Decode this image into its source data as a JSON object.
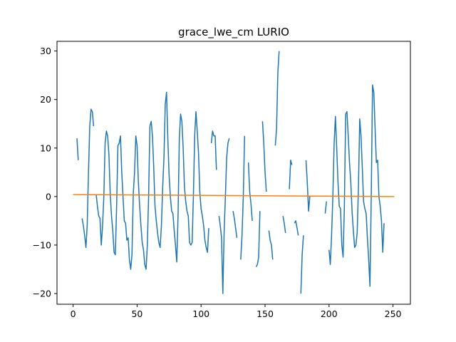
{
  "chart_data": {
    "type": "line",
    "title": "grace_lwe_cm LURIO",
    "xlabel": "",
    "ylabel": "",
    "xlim": [
      -12.6,
      263.6
    ],
    "ylim": [
      -22.2,
      32.0
    ],
    "xticks": [
      0,
      50,
      100,
      150,
      200,
      250
    ],
    "yticks": [
      -20,
      -10,
      0,
      10,
      20,
      30
    ],
    "grid": false,
    "series": [
      {
        "color": "#1f77b4",
        "points": [
          [
            3,
            12.0
          ],
          [
            4,
            7.5
          ],
          [
            null,
            null
          ],
          [
            7,
            -4.5
          ],
          [
            8,
            -6.0
          ],
          [
            9,
            -8.0
          ],
          [
            10,
            -10.5
          ],
          [
            11,
            -6.0
          ],
          [
            12,
            5.0
          ],
          [
            13,
            14.5
          ],
          [
            14,
            18.0
          ],
          [
            15,
            17.5
          ],
          [
            16,
            14.5
          ],
          [
            null,
            null
          ],
          [
            18,
            0.5
          ],
          [
            19,
            -2.0
          ],
          [
            20,
            -4.0
          ],
          [
            21,
            -4.5
          ],
          [
            22,
            -10.0
          ],
          [
            23,
            -6.0
          ],
          [
            24,
            0.0
          ],
          [
            25,
            11.0
          ],
          [
            26,
            13.5
          ],
          [
            27,
            12.5
          ],
          [
            28,
            8.5
          ],
          [
            29,
            0.5
          ],
          [
            30,
            -4.0
          ],
          [
            31,
            -7.0
          ],
          [
            32,
            -11.5
          ],
          [
            33,
            -12.0
          ],
          [
            34,
            -2.0
          ],
          [
            35,
            10.5
          ],
          [
            36,
            11.0
          ],
          [
            37,
            12.5
          ],
          [
            38,
            5.0
          ],
          [
            39,
            0.0
          ],
          [
            40,
            -5.0
          ],
          [
            41,
            -5.5
          ],
          [
            42,
            -9.0
          ],
          [
            43,
            -8.5
          ],
          [
            44,
            -13.0
          ],
          [
            45,
            -15.0
          ],
          [
            46,
            -12.0
          ],
          [
            47,
            0.5
          ],
          [
            48,
            5.0
          ],
          [
            49,
            12.5
          ],
          [
            50,
            10.5
          ],
          [
            51,
            3.0
          ],
          [
            52,
            -2.0
          ],
          [
            53,
            -6.0
          ],
          [
            54,
            -9.5
          ],
          [
            55,
            -11.0
          ],
          [
            56,
            -14.0
          ],
          [
            57,
            -15.0
          ],
          [
            58,
            -10.0
          ],
          [
            59,
            0.0
          ],
          [
            60,
            14.5
          ],
          [
            61,
            15.5
          ],
          [
            62,
            12.5
          ],
          [
            63,
            6.0
          ],
          [
            64,
            -2.0
          ],
          [
            65,
            -5.0
          ],
          [
            66,
            -7.5
          ],
          [
            67,
            -9.5
          ],
          [
            68,
            -10.5
          ],
          [
            69,
            -6.0
          ],
          [
            70,
            2.0
          ],
          [
            71,
            8.0
          ],
          [
            72,
            19.0
          ],
          [
            73,
            21.5
          ],
          [
            74,
            12.0
          ],
          [
            75,
            4.5
          ],
          [
            76,
            0.0
          ],
          [
            77,
            -3.0
          ],
          [
            78,
            -3.5
          ],
          [
            79,
            -7.0
          ],
          [
            80,
            -10.0
          ],
          [
            81,
            -13.5
          ],
          [
            82,
            -4.0
          ],
          [
            83,
            12.0
          ],
          [
            84,
            17.0
          ],
          [
            85,
            15.5
          ],
          [
            86,
            10.0
          ],
          [
            87,
            2.0
          ],
          [
            88,
            -1.0
          ],
          [
            89,
            -3.0
          ],
          [
            90,
            -4.0
          ],
          [
            91,
            -9.5
          ],
          [
            92,
            -10.0
          ],
          [
            93,
            -9.5
          ],
          [
            94,
            0.0
          ],
          [
            95,
            12.5
          ],
          [
            96,
            17.5
          ],
          [
            97,
            13.5
          ],
          [
            98,
            9.0
          ],
          [
            99,
            1.0
          ],
          [
            100,
            -2.5
          ],
          [
            101,
            -4.0
          ],
          [
            102,
            -6.0
          ],
          [
            103,
            -9.0
          ],
          [
            104,
            -10.5
          ],
          [
            105,
            -11.5
          ],
          [
            106,
            -6.5
          ],
          [
            null,
            null
          ],
          [
            108,
            11.0
          ],
          [
            109,
            13.5
          ],
          [
            110,
            12.5
          ],
          [
            111,
            12.5
          ],
          [
            112,
            5.5
          ],
          [
            null,
            null
          ],
          [
            114,
            -4.0
          ],
          [
            115,
            -6.0
          ],
          [
            116,
            -8.5
          ],
          [
            117,
            -20.0
          ],
          [
            118,
            -7.5
          ],
          [
            119,
            0.0
          ],
          [
            120,
            8.0
          ],
          [
            121,
            11.0
          ],
          [
            122,
            12.0
          ],
          [
            null,
            null
          ],
          [
            125,
            -3.0
          ],
          [
            126,
            -4.5
          ],
          [
            127,
            -6.5
          ],
          [
            128,
            -8.5
          ],
          [
            null,
            null
          ],
          [
            131,
            -13.0
          ],
          [
            132,
            -8.0
          ],
          [
            133,
            0.0
          ],
          [
            134,
            12.5
          ],
          [
            null,
            null
          ],
          [
            137,
            7.0
          ],
          [
            138,
            1.0
          ],
          [
            139,
            -1.5
          ],
          [
            140,
            -5.0
          ],
          [
            null,
            null
          ],
          [
            143,
            -14.5
          ],
          [
            144,
            -14.0
          ],
          [
            145,
            -12.5
          ],
          [
            146,
            -3.0
          ],
          [
            null,
            null
          ],
          [
            148,
            15.5
          ],
          [
            149,
            11.0
          ],
          [
            150,
            5.0
          ],
          [
            151,
            1.0
          ],
          [
            null,
            null
          ],
          [
            153,
            -7.0
          ],
          [
            154,
            -9.0
          ],
          [
            155,
            -10.0
          ],
          [
            156,
            -13.0
          ],
          [
            null,
            null
          ],
          [
            158,
            10.5
          ],
          [
            159,
            14.0
          ],
          [
            160,
            25.5
          ],
          [
            161,
            30.0
          ],
          [
            null,
            null
          ],
          [
            164,
            -4.0
          ],
          [
            165,
            -5.5
          ],
          [
            166,
            -7.5
          ],
          [
            null,
            null
          ],
          [
            169,
            1.5
          ],
          [
            170,
            7.5
          ],
          [
            171,
            6.5
          ],
          [
            null,
            null
          ],
          [
            173,
            -5.5
          ],
          [
            174,
            -5.0
          ],
          [
            175,
            -6.5
          ],
          [
            176,
            -8.0
          ],
          [
            null,
            null
          ],
          [
            178,
            -20.0
          ],
          [
            179,
            -12.0
          ],
          [
            180,
            -8.0
          ],
          [
            null,
            null
          ],
          [
            182,
            7.5
          ],
          [
            183,
            3.0
          ],
          [
            184,
            -3.0
          ],
          [
            185,
            0.0
          ],
          [
            null,
            null
          ],
          [
            197,
            -3.5
          ],
          [
            198,
            -1.0
          ],
          [
            null,
            null
          ],
          [
            200,
            -11.0
          ],
          [
            201,
            -14.0
          ],
          [
            202,
            -8.0
          ],
          [
            203,
            0.0
          ],
          [
            204,
            11.0
          ],
          [
            205,
            16.5
          ],
          [
            206,
            10.0
          ],
          [
            207,
            3.0
          ],
          [
            208,
            -2.0
          ],
          [
            209,
            -2.5
          ],
          [
            210,
            -10.0
          ],
          [
            211,
            -12.5
          ],
          [
            212,
            -2.0
          ],
          [
            213,
            17.0
          ],
          [
            214,
            17.5
          ],
          [
            215,
            12.5
          ],
          [
            216,
            7.0
          ],
          [
            217,
            3.0
          ],
          [
            218,
            -3.0
          ],
          [
            219,
            -7.0
          ],
          [
            220,
            -10.5
          ],
          [
            221,
            -10.0
          ],
          [
            222,
            -7.5
          ],
          [
            223,
            2.0
          ],
          [
            224,
            16.0
          ],
          [
            225,
            12.5
          ],
          [
            226,
            6.0
          ],
          [
            227,
            -1.0
          ],
          [
            228,
            -2.5
          ],
          [
            229,
            -3.5
          ],
          [
            230,
            -8.5
          ],
          [
            231,
            -13.0
          ],
          [
            232,
            -18.5
          ],
          [
            233,
            0.0
          ],
          [
            234,
            23.0
          ],
          [
            235,
            21.5
          ],
          [
            236,
            14.0
          ],
          [
            237,
            7.0
          ],
          [
            238,
            7.5
          ],
          [
            239,
            0.0
          ],
          [
            240,
            -2.0
          ],
          [
            241,
            -5.0
          ],
          [
            242,
            -11.5
          ],
          [
            243,
            -5.5
          ]
        ]
      },
      {
        "color": "#ff7f0e",
        "points": [
          [
            0,
            0.4
          ],
          [
            251,
            0.0
          ]
        ]
      }
    ]
  }
}
